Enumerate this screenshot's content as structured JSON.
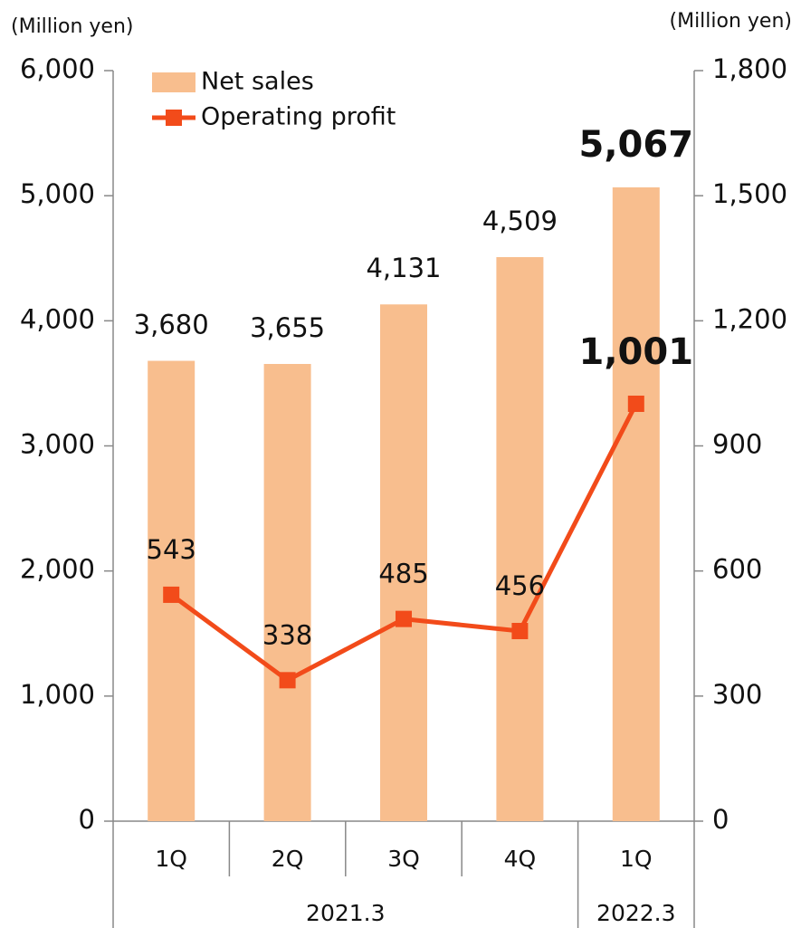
{
  "chart_data": {
    "type": "bar-line",
    "y_unit": "(Million yen)",
    "y2_unit": "(Million yen)",
    "categories": [
      "1Q",
      "2Q",
      "3Q",
      "4Q",
      "1Q"
    ],
    "category_groups": [
      "2021.3",
      "2021.3",
      "2021.3",
      "2021.3",
      "2022.3"
    ],
    "series": [
      {
        "name": "Net sales",
        "type": "bar",
        "color": "#f8be8e",
        "axis": "y",
        "values": [
          3680,
          3655,
          4131,
          4509,
          5067
        ],
        "value_labels": [
          "3,680",
          "3,655",
          "4,131",
          "4,509",
          "5,067"
        ]
      },
      {
        "name": "Operating profit",
        "type": "line",
        "color": "#f24b1a",
        "axis": "y2",
        "values": [
          543,
          338,
          485,
          456,
          1001
        ],
        "value_labels": [
          "543",
          "338",
          "485",
          "456",
          "1,001"
        ]
      }
    ],
    "ylim": [
      0,
      6000
    ],
    "yticks": [
      0,
      {
        "value": 1000,
        "label": "1,000"
      },
      {
        "value": 2000,
        "label": "2,000"
      },
      {
        "value": 3000,
        "label": "3,000"
      },
      {
        "value": 4000,
        "label": "4,000"
      },
      {
        "value": 5000,
        "label": "5,000"
      },
      {
        "value": 6000,
        "label": "6,000"
      }
    ],
    "y2lim": [
      0,
      1800
    ],
    "y2ticks": [
      0,
      300,
      600,
      900,
      {
        "value": 1200,
        "label": "1,200"
      },
      {
        "value": 1500,
        "label": "1,500"
      },
      {
        "value": 1800,
        "label": "1,800"
      }
    ],
    "legend": "upper left"
  }
}
